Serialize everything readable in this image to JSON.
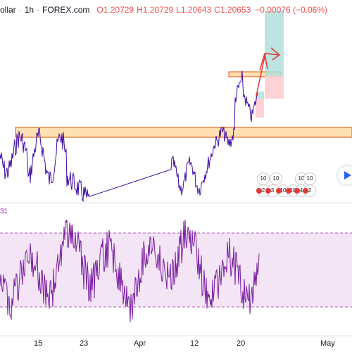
{
  "legend": {
    "symbol_tail": "ollar",
    "interval": "1h",
    "source": "FOREX.com",
    "open": "O1.20729",
    "high": "H1.20729",
    "low": "L1.20643",
    "close": "C1.20653",
    "change": "−0.00076 (−0.06%)"
  },
  "rsi": {
    "label_tail": "31"
  },
  "x_axis": {
    "labels": [
      "15",
      "23",
      "Apr",
      "12",
      "20",
      "May"
    ]
  },
  "events": {
    "row1": [
      "10",
      "10",
      "10",
      "10"
    ],
    "row2": [
      "2",
      "3",
      "10",
      "10",
      "4",
      "2"
    ]
  },
  "colors": {
    "price_line": "#2962ff",
    "price_candle": "#3f0ba8",
    "zone_fill": "#ffe0b2",
    "zone_border": "#e65100",
    "target_fill": "#b2dfdb",
    "stop_fill": "#ffcdd2",
    "arrow": "#e53935",
    "rsi_line": "#7b1fa2",
    "rsi_band": "#f3e5f5",
    "rsi_dash": "#9c27b0"
  }
}
